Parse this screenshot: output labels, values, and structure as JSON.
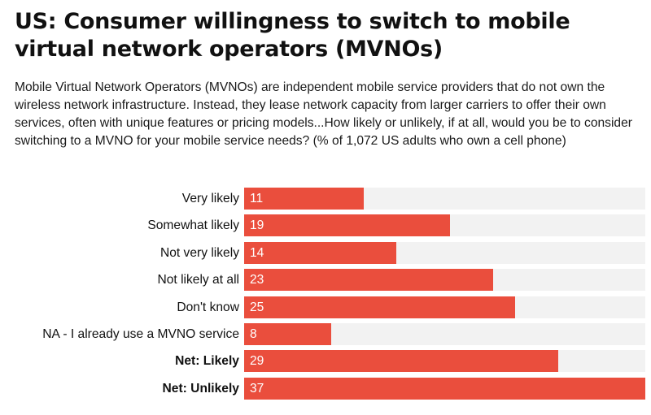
{
  "chart_data": {
    "type": "bar",
    "orientation": "horizontal",
    "title": "US: Consumer willingness to switch to mobile virtual network operators (MVNOs)",
    "subtitle": "Mobile Virtual Network Operators (MVNOs) are independent mobile service providers that do not own the wireless network infrastructure. Instead, they lease network capacity from larger carriers to offer their own services, often with unique features or pricing models...How likely or unlikely, if at all, would you be to consider switching to a MVNO for your mobile service needs? (% of 1,072 US adults who own a cell phone)",
    "categories": [
      "Very likely",
      "Somewhat likely",
      "Not very likely",
      "Not likely at all",
      "Don't know",
      "NA - I already use a MVNO service",
      "Net: Likely",
      "Net: Unlikely"
    ],
    "bold_categories": [
      "Net: Likely",
      "Net: Unlikely"
    ],
    "values": [
      11,
      19,
      14,
      23,
      25,
      8,
      29,
      37
    ],
    "xlim": [
      0,
      37
    ],
    "bar_color": "#ea4e3d",
    "track_color": "#f2f2f2",
    "value_label_color": "#ffffff",
    "grid": false,
    "legend": "none"
  }
}
